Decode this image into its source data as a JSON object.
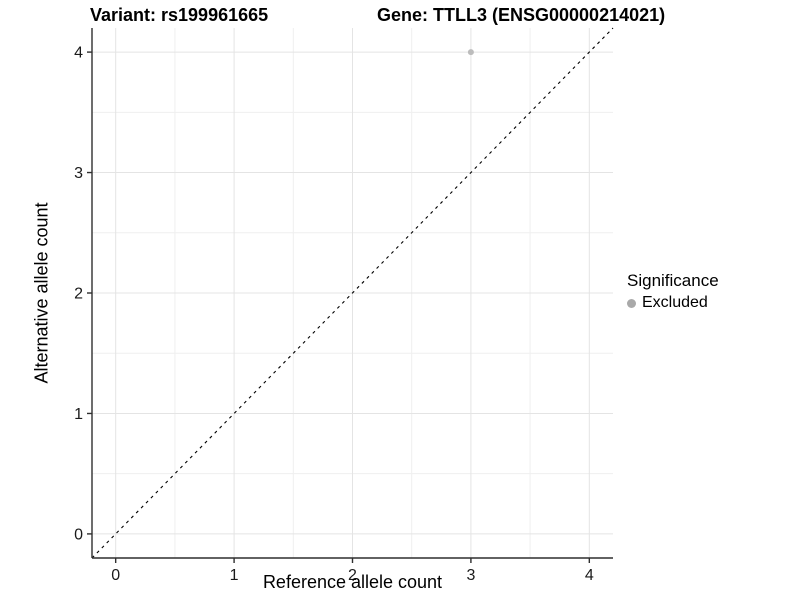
{
  "header": {
    "title_left": "Variant: rs199961665",
    "title_right": "Gene: TTLL3 (ENSG00000214021)"
  },
  "chart_data": {
    "type": "scatter",
    "title": "Variant: rs199961665  /  Gene: TTLL3 (ENSG00000214021)",
    "xlabel": "Reference allele count",
    "ylabel": "Alternative allele count",
    "xlim": [
      -0.2,
      4.2
    ],
    "ylim": [
      -0.2,
      4.2
    ],
    "xticks": [
      0,
      1,
      2,
      3,
      4
    ],
    "yticks": [
      0,
      1,
      2,
      3,
      4
    ],
    "minor_step": 0.5,
    "grid": "major-and-minor",
    "series": [
      {
        "name": "Excluded",
        "color": "#bcbcbc",
        "points": [
          {
            "x": 3,
            "y": 4
          }
        ]
      }
    ],
    "reference_line": {
      "type": "identity-diagonal",
      "from": [
        -0.2,
        -0.2
      ],
      "to": [
        4.2,
        4.2
      ],
      "style": "dashed",
      "color": "#000000"
    },
    "legend": {
      "title": "Significance",
      "position": "right",
      "entries": [
        {
          "label": "Excluded",
          "color": "#a9a9a9"
        }
      ]
    }
  },
  "colors": {
    "background": "#ffffff",
    "grid_major": "#e4e4e4",
    "grid_minor": "#efefef",
    "axis_line": "#2f2f2f",
    "tick_label": "#1a1a1a"
  }
}
